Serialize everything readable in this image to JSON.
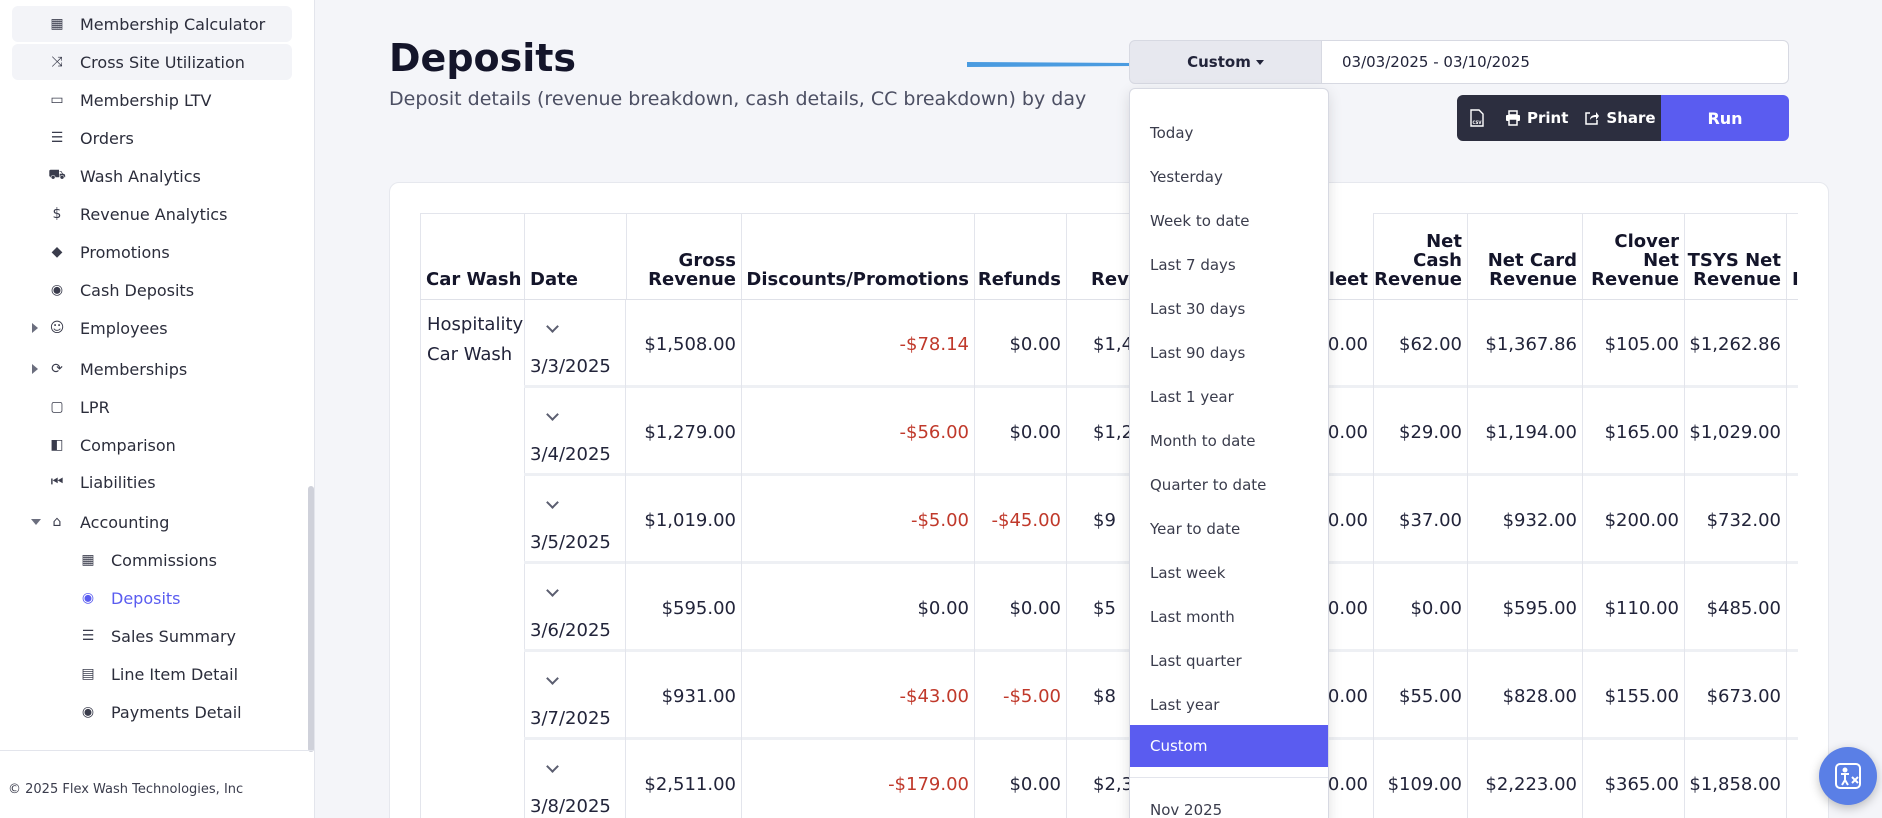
{
  "sidebar": {
    "items": [
      {
        "label": "Membership Calculator",
        "icon": "calculator-icon"
      },
      {
        "label": "Cross Site Utilization",
        "icon": "shuffle-icon"
      },
      {
        "label": "Membership LTV",
        "icon": "ticket-icon"
      },
      {
        "label": "Orders",
        "icon": "receipt-icon"
      },
      {
        "label": "Wash Analytics",
        "icon": "car-icon"
      },
      {
        "label": "Revenue Analytics",
        "icon": "dollar-icon"
      },
      {
        "label": "Promotions",
        "icon": "tag-icon"
      },
      {
        "label": "Cash Deposits",
        "icon": "money-icon"
      },
      {
        "label": "Employees",
        "icon": "users-icon"
      },
      {
        "label": "Memberships",
        "icon": "refresh-icon"
      },
      {
        "label": "LPR",
        "icon": "camera-icon"
      },
      {
        "label": "Comparison",
        "icon": "compare-icon"
      },
      {
        "label": "Liabilities",
        "icon": "step-back-icon"
      },
      {
        "label": "Accounting",
        "icon": "bank-icon"
      }
    ],
    "sub_items": [
      {
        "label": "Commissions",
        "icon": "calculator-icon"
      },
      {
        "label": "Deposits",
        "icon": "money-icon"
      },
      {
        "label": "Sales Summary",
        "icon": "list-icon"
      },
      {
        "label": "Line Item Detail",
        "icon": "id-card-icon"
      },
      {
        "label": "Payments Detail",
        "icon": "money-icon"
      }
    ],
    "footer": "© 2025 Flex Wash Technologies, Inc"
  },
  "header": {
    "title": "Deposits",
    "subtitle": "Deposit details (revenue breakdown, cash details, CC breakdown) by day"
  },
  "filters": {
    "range_label": "Custom",
    "date_range": "03/03/2025 - 03/10/2025"
  },
  "toolbar": {
    "print_label": "Print",
    "share_label": "Share",
    "run_label": "Run"
  },
  "dropdown": {
    "options": [
      "Today",
      "Yesterday",
      "Week to date",
      "Last 7 days",
      "Last 30 days",
      "Last 90 days",
      "Last 1 year",
      "Month to date",
      "Quarter to date",
      "Year to date",
      "Last week",
      "Last month",
      "Last quarter",
      "Last year",
      "Custom"
    ],
    "selected": "Custom",
    "extra_option": "Nov 2025"
  },
  "table": {
    "headers": {
      "car_wash": "Car Wash",
      "date": "Date",
      "gross_1": "Gross",
      "gross_2": "Revenue",
      "discounts": "Discounts/Promotions",
      "refunds": "Refunds",
      "rev_partial": "Rev",
      "fleet_partial": "leet",
      "net_cash_1": "Net",
      "net_cash_2": "Cash",
      "net_cash_3": "Revenue",
      "net_card_1": "Net Card",
      "net_card_2": "Revenue",
      "clover_1": "Clover",
      "clover_2": "Net",
      "clover_3": "Revenue",
      "tsys_1": "TSYS Net",
      "tsys_2": "Revenue",
      "next_partial": "I"
    },
    "car_wash_name": "Hospitality Car Wash",
    "rows": [
      {
        "date": "3/3/2025",
        "gross": "$1,508.00",
        "discounts": "-$78.14",
        "refunds": "$0.00",
        "rev": "$1,4",
        "fleet": "50.00",
        "net_cash": "$62.00",
        "net_card": "$1,367.86",
        "clover": "$105.00",
        "tsys": "$1,262.86"
      },
      {
        "date": "3/4/2025",
        "gross": "$1,279.00",
        "discounts": "-$56.00",
        "refunds": "$0.00",
        "rev": "$1,2",
        "fleet": "50.00",
        "net_cash": "$29.00",
        "net_card": "$1,194.00",
        "clover": "$165.00",
        "tsys": "$1,029.00"
      },
      {
        "date": "3/5/2025",
        "gross": "$1,019.00",
        "discounts": "-$5.00",
        "refunds": "-$45.00",
        "rev": "$9",
        "fleet": "50.00",
        "net_cash": "$37.00",
        "net_card": "$932.00",
        "clover": "$200.00",
        "tsys": "$732.00"
      },
      {
        "date": "3/6/2025",
        "gross": "$595.00",
        "discounts": "$0.00",
        "refunds": "$0.00",
        "rev": "$5",
        "fleet": "50.00",
        "net_cash": "$0.00",
        "net_card": "$595.00",
        "clover": "$110.00",
        "tsys": "$485.00"
      },
      {
        "date": "3/7/2025",
        "gross": "$931.00",
        "discounts": "-$43.00",
        "refunds": "-$5.00",
        "rev": "$8",
        "fleet": "50.00",
        "net_cash": "$55.00",
        "net_card": "$828.00",
        "clover": "$155.00",
        "tsys": "$673.00"
      },
      {
        "date": "3/8/2025",
        "gross": "$2,511.00",
        "discounts": "-$179.00",
        "refunds": "$0.00",
        "rev": "$2,3",
        "fleet": "50.00",
        "net_cash": "$109.00",
        "net_card": "$2,223.00",
        "clover": "$365.00",
        "tsys": "$1,858.00"
      }
    ]
  },
  "colors": {
    "accent": "#5a5cf0",
    "negative": "#c0392b",
    "arrow": "#4a9be0"
  }
}
